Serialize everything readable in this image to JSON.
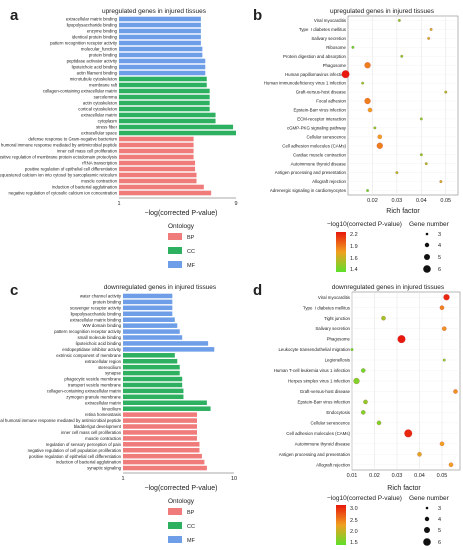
{
  "panels": [
    {
      "letter": "a",
      "title": "upregulated genes in injured tissues",
      "xlabel": "−log(corrected P-value)",
      "ticks": [
        "1",
        "9"
      ],
      "legend_title": "Ontology",
      "legend": [
        {
          "label": "BP",
          "color": "#f07b7b"
        },
        {
          "label": "CC",
          "color": "#2db060"
        },
        {
          "label": "MF",
          "color": "#6e9ee8"
        }
      ]
    },
    {
      "letter": "b",
      "title": "upregulated genes in injured tissues",
      "xlabel": "Rich factor",
      "ticks": [
        "0.02",
        "0.03",
        "0.04",
        "0.05"
      ],
      "color_title": "−log10(corrected P-value)",
      "color_ticks": [
        "2.2",
        "1.9",
        "1.6",
        "1.4"
      ],
      "size_title": "Gene number",
      "size_ticks": [
        "3",
        "4",
        "5",
        "6"
      ]
    },
    {
      "letter": "c",
      "title": "downregulated genes in injured tissues",
      "xlabel": "−log(corrected P-value)",
      "ticks": [
        "1",
        "10"
      ],
      "legend_title": "Ontology",
      "legend": [
        {
          "label": "BP",
          "color": "#f07b7b"
        },
        {
          "label": "CC",
          "color": "#2db060"
        },
        {
          "label": "MF",
          "color": "#6e9ee8"
        }
      ]
    },
    {
      "letter": "d",
      "title": "downregulated genes in injured tissues",
      "xlabel": "Rich factor",
      "ticks": [
        "0.01",
        "0.02",
        "0.03",
        "0.04",
        "0.05"
      ],
      "color_title": "−log10(corrected P-value)",
      "color_ticks": [
        "3.0",
        "2.5",
        "2.0",
        "1.5"
      ],
      "size_title": "Gene number",
      "size_ticks": [
        "3",
        "4",
        "5",
        "6"
      ]
    }
  ],
  "chart_data": [
    {
      "type": "bar",
      "panel": "a",
      "title": "upregulated genes in injured tissues",
      "xlabel": "−log(corrected P-value)",
      "xlim": [
        1,
        9
      ],
      "categories": [
        "extracellular matrix binding",
        "lipopolysaccharide binding",
        "enzyme binding",
        "identical protein binding",
        "pattern recognition receptor activity",
        "molecular_function",
        "protein binding",
        "peptidase activator activity",
        "lipoteichoic acid binding",
        "actin filament binding",
        "microtubule cytoskeleton",
        "membrane raft",
        "collagen-containing extracellular matrix",
        "sarcolemma",
        "actin cytoskeleton",
        "cortical cytoskeleton",
        "extracellular matrix",
        "cytoplasm",
        "stress fiber",
        "extracellular space",
        "defense response to Gram-negative bacterium",
        "antimicrobial humoral immune response mediated by antimicrobial peptide",
        "inner cell mass cell proliferation",
        "positive regulation of membrane protein ectodomain proteolysis",
        "rRNA transcription",
        "positive regulation of epithelial cell differentiation",
        "release of sequestered calcium ion into cytosol by sarcoplasmic reticulum",
        "muscle contraction",
        "induction of bacterial agglutination",
        "negative regulation of cytosolic calcium ion concentration"
      ],
      "values": [
        6.6,
        6.6,
        6.6,
        6.6,
        6.6,
        6.7,
        6.7,
        6.9,
        6.9,
        6.9,
        7.0,
        7.0,
        7.2,
        7.2,
        7.2,
        7.2,
        7.6,
        7.6,
        8.8,
        9.0,
        6.1,
        6.1,
        6.1,
        6.1,
        6.2,
        6.2,
        6.3,
        6.3,
        6.8,
        7.3
      ],
      "ontology": [
        "MF",
        "MF",
        "MF",
        "MF",
        "MF",
        "MF",
        "MF",
        "MF",
        "MF",
        "MF",
        "CC",
        "CC",
        "CC",
        "CC",
        "CC",
        "CC",
        "CC",
        "CC",
        "CC",
        "CC",
        "BP",
        "BP",
        "BP",
        "BP",
        "BP",
        "BP",
        "BP",
        "BP",
        "BP",
        "BP"
      ]
    },
    {
      "type": "scatter",
      "panel": "b",
      "title": "upregulated genes in injured tissues",
      "xlabel": "Rich factor",
      "xlim": [
        0.01,
        0.055
      ],
      "categories": [
        "Viral myocarditis",
        "Type  I diabetes mellitus",
        "Salivary secretion",
        "Ribosome",
        "Protein digestion and absorption",
        "Phagosome",
        "Human papillomavirus infection",
        "Human immunodeficiency virus 1 infection",
        "Graft-versus-host disease",
        "Focal adhesion",
        "Epstein-Barr virus infection",
        "ECM-receptor interaction",
        "cGMP-PKG signaling pathway",
        "Cellular senescence",
        "Cell adhesion molecules (CAMs)",
        "Cardiac muscle contraction",
        "Autoimmune thyroid disease",
        "Antigen processing and presentation",
        "Allograft rejection",
        "Adrenergic signaling in cardiomyocytes"
      ],
      "x": [
        0.031,
        0.044,
        0.043,
        0.012,
        0.032,
        0.018,
        0.009,
        0.016,
        0.05,
        0.018,
        0.019,
        0.04,
        0.021,
        0.023,
        0.023,
        0.04,
        0.042,
        0.03,
        0.048,
        0.018
      ],
      "neg_log10_p": [
        1.5,
        1.7,
        1.7,
        1.4,
        1.5,
        1.9,
        2.2,
        1.5,
        1.6,
        1.9,
        1.8,
        1.5,
        1.5,
        1.8,
        1.9,
        1.5,
        1.6,
        1.6,
        1.7,
        1.4
      ],
      "gene_number": [
        3,
        3,
        3,
        3,
        3,
        5,
        6,
        3,
        3,
        5,
        4,
        3,
        3,
        4,
        5,
        3,
        3,
        3,
        3,
        3
      ]
    },
    {
      "type": "bar",
      "panel": "c",
      "title": "downregulated genes in injured tissues",
      "xlabel": "−log(corrected P-value)",
      "xlim": [
        1,
        10
      ],
      "categories": [
        "water channel activity",
        "protein binding",
        "scavenger receptor activity",
        "lipopolysaccharide binding",
        "extracellular matrix binding",
        "WW domain binding",
        "pattern recognition receptor activity",
        "small molecule binding",
        "lipoteichoic acid binding",
        "endopeptidase inhibitor activity",
        "extrinsic component of membrane",
        "extracellular region",
        "stereocilium",
        "synapse",
        "phagocytic vesicle membrane",
        "transport vesicle membrane",
        "collagen-containing extracellular matrix",
        "zymogen granule membrane",
        "extracellular matrix",
        "kinocilium",
        "retina homeostasis",
        "antimicrobial humoral immune response mediated by antimicrobial peptide",
        "bladder/gut development",
        "inner cell mass cell proliferation",
        "muscle contraction",
        "regulation of sensory perception of pain",
        "negative regulation of cell population proliferation",
        "positive regulation of epithelial cell differentiation",
        "induction of bacterial agglutination",
        "synaptic signaling"
      ],
      "values": [
        5.0,
        5.0,
        5.0,
        5.0,
        5.2,
        5.4,
        5.6,
        5.8,
        7.9,
        8.4,
        5.2,
        5.4,
        5.6,
        5.6,
        5.8,
        5.8,
        5.9,
        5.9,
        7.8,
        8.1,
        7.0,
        7.0,
        7.0,
        7.0,
        7.0,
        7.2,
        7.2,
        7.4,
        7.6,
        7.8
      ],
      "ontology": [
        "MF",
        "MF",
        "MF",
        "MF",
        "MF",
        "MF",
        "MF",
        "MF",
        "MF",
        "MF",
        "CC",
        "CC",
        "CC",
        "CC",
        "CC",
        "CC",
        "CC",
        "CC",
        "CC",
        "CC",
        "BP",
        "BP",
        "BP",
        "BP",
        "BP",
        "BP",
        "BP",
        "BP",
        "BP",
        "BP"
      ]
    },
    {
      "type": "scatter",
      "panel": "d",
      "title": "downregulated genes in injured tissues",
      "xlabel": "Rich factor",
      "xlim": [
        0.01,
        0.058
      ],
      "categories": [
        "Viral myocarditis",
        "Type  I diabetes mellitus",
        "Tight junction",
        "Salivary secretion",
        "Phagosome",
        "Leukocyte transendothelial migration",
        "Legionellosis",
        "Human T-cell leukemia virus 1 infection",
        "Herpes simplex virus 1 infection",
        "Graft-versus-host disease",
        "Epstein-Barr virus infection",
        "Endocytosis",
        "Cellular senescence",
        "Cell adhesion molecules (CAMs)",
        "Autoimmune thyroid disease",
        "Antigen processing and presentation",
        "Allograft rejection"
      ],
      "x": [
        0.052,
        0.05,
        0.024,
        0.051,
        0.032,
        0.01,
        0.051,
        0.015,
        0.012,
        0.056,
        0.016,
        0.015,
        0.022,
        0.035,
        0.05,
        0.04,
        0.054
      ],
      "neg_log10_p": [
        3.2,
        2.6,
        1.9,
        2.5,
        3.3,
        1.5,
        1.7,
        1.6,
        1.7,
        2.5,
        1.8,
        1.7,
        1.7,
        3.2,
        2.4,
        2.3,
        2.4
      ],
      "gene_number": [
        5,
        4,
        4,
        4,
        6,
        3,
        3,
        4,
        5,
        4,
        4,
        4,
        4,
        6,
        4,
        4,
        4
      ]
    }
  ]
}
